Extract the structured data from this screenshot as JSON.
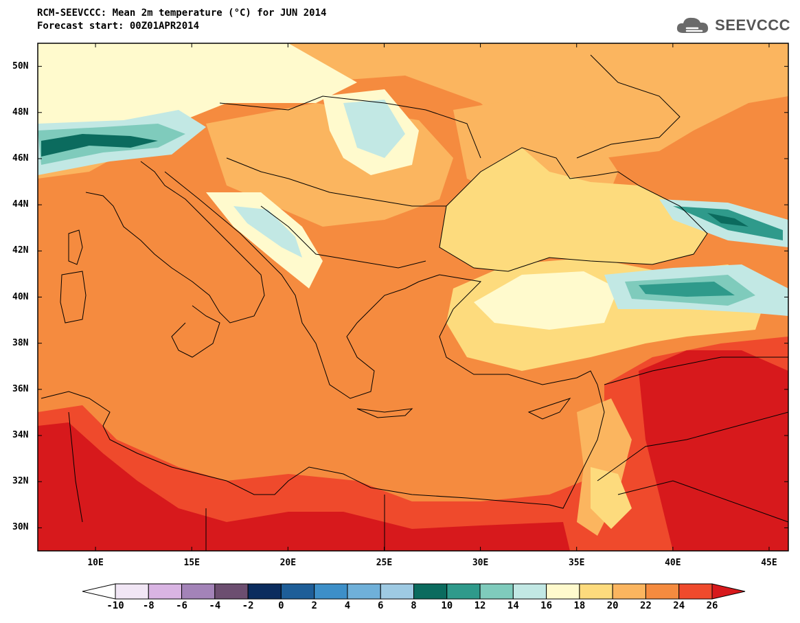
{
  "header": {
    "title": "RCM-SEEVCCC: Mean 2m temperature (°C) for JUN 2014",
    "subtitle": "Forecast start: 00Z01APR2014"
  },
  "logo": {
    "text": "SEEVCCC",
    "icon": "cloud-icon"
  },
  "map": {
    "lon_range": [
      7,
      46
    ],
    "lat_range": [
      29,
      51
    ],
    "lat_labels": [
      "50N",
      "48N",
      "46N",
      "44N",
      "42N",
      "40N",
      "38N",
      "36N",
      "34N",
      "32N",
      "30N"
    ],
    "lat_values": [
      50,
      48,
      46,
      44,
      42,
      40,
      38,
      36,
      34,
      32,
      30
    ],
    "lon_labels": [
      "10E",
      "15E",
      "20E",
      "25E",
      "30E",
      "35E",
      "40E",
      "45E"
    ],
    "lon_values": [
      10,
      15,
      20,
      25,
      30,
      35,
      40,
      45
    ]
  },
  "colorbar": {
    "tick_labels": [
      "-10",
      "-8",
      "-6",
      "-4",
      "-2",
      "0",
      "2",
      "4",
      "6",
      "8",
      "10",
      "12",
      "14",
      "16",
      "18",
      "20",
      "22",
      "24",
      "26"
    ],
    "colors": [
      "#f1e6f5",
      "#d9b4e3",
      "#a383b8",
      "#6c4e70",
      "#0b2c5e",
      "#1e5e98",
      "#3d8fc8",
      "#6fb0d9",
      "#9ecae3",
      "#0b6b5e",
      "#2f9a8b",
      "#7fcbbc",
      "#c2e8e4",
      "#fffacd",
      "#fddb7d",
      "#fbb55f",
      "#f58b3f",
      "#ef4a2c"
    ],
    "under_color": "#ffffff",
    "over_color": "#d7191c"
  }
}
